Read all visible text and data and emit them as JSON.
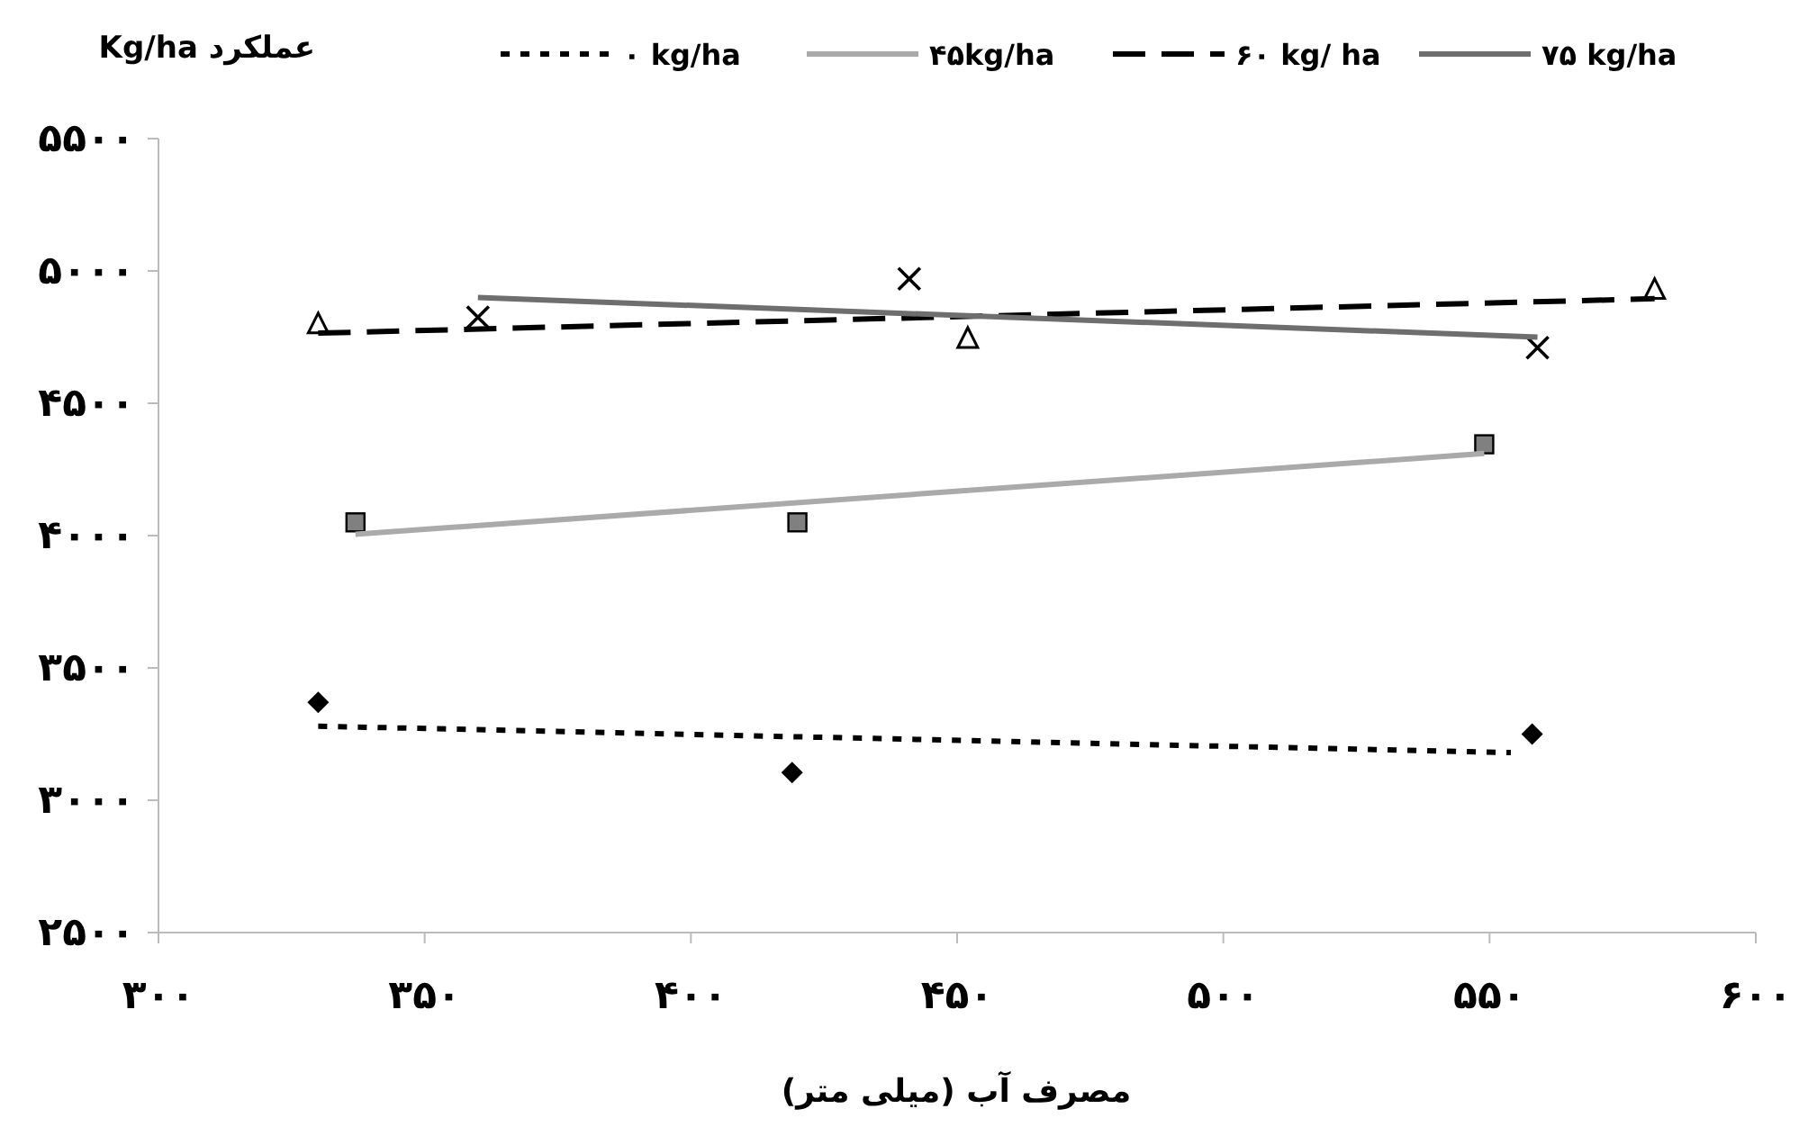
{
  "chart_data": {
    "type": "scatter",
    "title": "عملکرد Kg/ha",
    "xlabel": "مصرف آب (میلی متر)",
    "xlim": [
      300,
      600
    ],
    "ylim": [
      2500,
      5500
    ],
    "xticks": [
      {
        "value": 300,
        "label": "۳۰۰"
      },
      {
        "value": 350,
        "label": "۳۵۰"
      },
      {
        "value": 400,
        "label": "۴۰۰"
      },
      {
        "value": 450,
        "label": "۴۵۰"
      },
      {
        "value": 500,
        "label": "۵۰۰"
      },
      {
        "value": 550,
        "label": "۵۵۰"
      },
      {
        "value": 600,
        "label": "۶۰۰"
      }
    ],
    "yticks": [
      {
        "value": 2500,
        "label": "۲۵۰۰"
      },
      {
        "value": 3000,
        "label": "۳۰۰۰"
      },
      {
        "value": 3500,
        "label": "۳۵۰۰"
      },
      {
        "value": 4000,
        "label": "۴۰۰۰"
      },
      {
        "value": 4500,
        "label": "۴۵۰۰"
      },
      {
        "value": 5000,
        "label": "۵۰۰۰"
      },
      {
        "value": 5500,
        "label": "۵۵۰۰"
      }
    ],
    "grid": false,
    "legend": "top",
    "series": [
      {
        "type": "scatter",
        "color": "#000000",
        "marker": "diamond",
        "x": [
          330,
          419,
          558
        ],
        "values": [
          3370,
          3105,
          3250
        ]
      },
      {
        "type": "scatter",
        "color": "#808080",
        "marker": "square",
        "x": [
          337,
          420,
          549
        ],
        "values": [
          4050,
          4050,
          4345
        ]
      },
      {
        "type": "scatter",
        "color": "#000000",
        "marker": "triangle",
        "x": [
          330,
          452,
          581
        ],
        "values": [
          4800,
          4745,
          4930
        ]
      },
      {
        "type": "scatter",
        "color": "#000000",
        "marker": "cross",
        "x": [
          360,
          441,
          559
        ],
        "values": [
          4825,
          4970,
          4710
        ]
      },
      {
        "type": "line",
        "name": "۰ kg/ha",
        "color": "#000000",
        "line_style": "dotted",
        "marker": "none",
        "x": [
          330,
          554
        ],
        "values": [
          3280,
          3180
        ]
      },
      {
        "type": "line",
        "name": "۴۵kg/ha",
        "color": "#aaaaaa",
        "line_style": "solid",
        "marker": "none",
        "x": [
          337,
          549
        ],
        "values": [
          4005,
          4310
        ]
      },
      {
        "type": "line",
        "name": "۶۰ kg/ ha",
        "color": "#000000",
        "line_style": "dashed",
        "marker": "none",
        "x": [
          330,
          581
        ],
        "values": [
          4765,
          4895
        ]
      },
      {
        "type": "line",
        "name": "۷۵ kg/ha",
        "color": "#6e6e6e",
        "line_style": "solid",
        "marker": "none",
        "x": [
          360,
          559
        ],
        "values": [
          4900,
          4750
        ]
      }
    ]
  }
}
